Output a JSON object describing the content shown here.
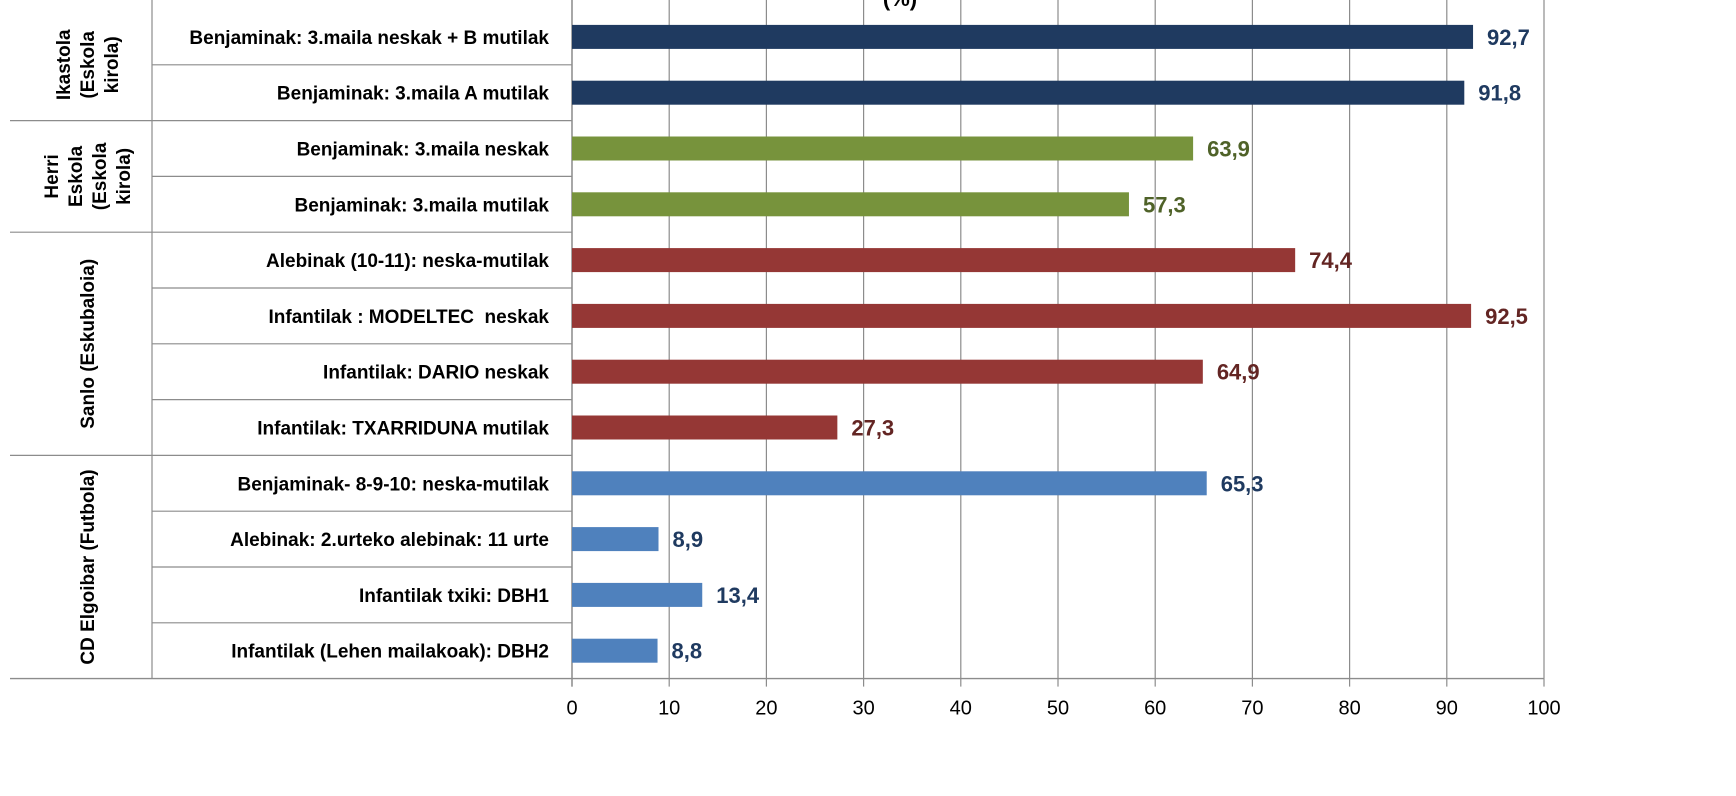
{
  "chart_data": {
    "type": "bar",
    "orientation": "horizontal",
    "title": "(%)",
    "xlabel": "",
    "ylabel": "",
    "xlim": [
      0,
      100
    ],
    "xticks": [
      0,
      10,
      20,
      30,
      40,
      50,
      60,
      70,
      80,
      90,
      100
    ],
    "grid": "vertical",
    "legend": "none",
    "groups": [
      {
        "label_lines": [
          "Ikastola",
          "(Eskola",
          "kirola)"
        ],
        "color": "#1F3A60",
        "label_color": "#1F3A60",
        "bars": [
          {
            "category": "Benjaminak: 3.maila neskak + B mutilak",
            "value": 92.7,
            "label": "92,7"
          },
          {
            "category": "Benjaminak: 3.maila A mutilak",
            "value": 91.8,
            "label": "91,8"
          }
        ]
      },
      {
        "label_lines": [
          "Herri",
          "Eskola",
          "(Eskola",
          "kirola)"
        ],
        "color": "#77933C",
        "label_color": "#4F6228",
        "bars": [
          {
            "category": "Benjaminak: 3.maila neskak",
            "value": 63.9,
            "label": "63,9"
          },
          {
            "category": "Benjaminak: 3.maila mutilak",
            "value": 57.3,
            "label": "57,3"
          }
        ]
      },
      {
        "label_lines": [
          "Sanlo (Eskubaloia)"
        ],
        "color": "#953735",
        "label_color": "#632523",
        "bars": [
          {
            "category": "Alebinak (10-11): neska-mutilak",
            "value": 74.4,
            "label": "74,4"
          },
          {
            "category": "Infantilak : MODELTEC  neskak",
            "value": 92.5,
            "label": "92,5"
          },
          {
            "category": "Infantilak: DARIO neskak",
            "value": 64.9,
            "label": "64,9"
          },
          {
            "category": "Infantilak: TXARRIDUNA mutilak",
            "value": 27.3,
            "label": "27,3"
          }
        ]
      },
      {
        "label_lines": [
          "CD Elgoibar (Futbola)"
        ],
        "color": "#4F81BD",
        "label_color": "#1F3A60",
        "bars": [
          {
            "category": "Benjaminak- 8-9-10: neska-mutilak",
            "value": 65.3,
            "label": "65,3"
          },
          {
            "category": "Alebinak: 2.urteko alebinak: 11 urte",
            "value": 8.9,
            "label": "8,9"
          },
          {
            "category": "Infantilak txiki: DBH1",
            "value": 13.4,
            "label": "13,4"
          },
          {
            "category": "Infantilak (Lehen mailakoak): DBH2",
            "value": 8.8,
            "label": "8,8"
          }
        ]
      }
    ]
  }
}
